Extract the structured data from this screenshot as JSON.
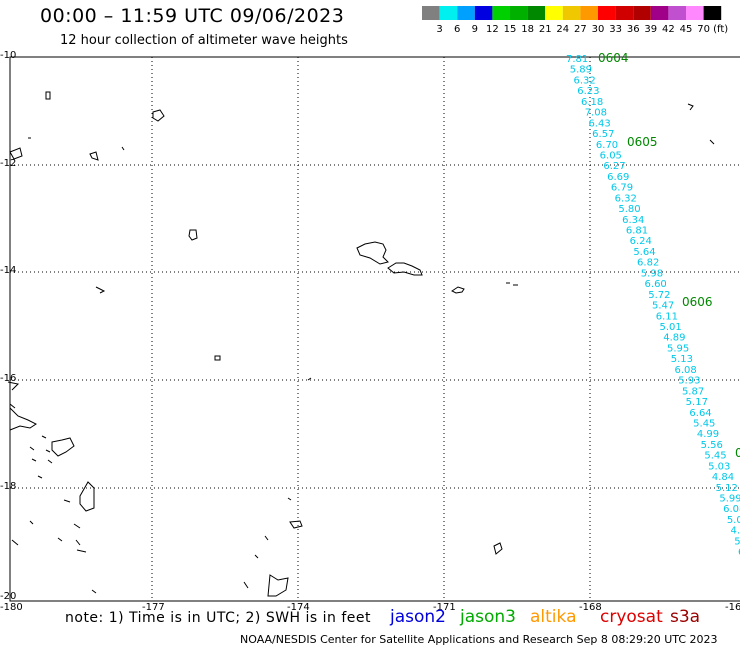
{
  "header": {
    "title": "00:00 – 11:59 UTC 09/06/2023",
    "subtitle": "12 hour collection of altimeter wave heights"
  },
  "colorbar": {
    "labels": [
      "3",
      "6",
      "9",
      "12",
      "15",
      "18",
      "21",
      "24",
      "27",
      "30",
      "33",
      "36",
      "39",
      "42",
      "45",
      "70"
    ],
    "unit": "(ft)",
    "colors": [
      "#808080",
      "#00f0f0",
      "#00a0ff",
      "#0000e0",
      "#00d000",
      "#00b000",
      "#008800",
      "#ffff00",
      "#f0c800",
      "#ff9900",
      "#ff0000",
      "#d00000",
      "#b00000",
      "#a00088",
      "#c050d0",
      "#ff88ff",
      "#000000"
    ]
  },
  "axes": {
    "lat_labels": [
      "-10",
      "-12",
      "-14",
      "-16",
      "-18",
      "-20"
    ],
    "lon_labels": [
      "-180",
      "-177",
      "-174",
      "-171",
      "-168",
      "-16"
    ]
  },
  "track": {
    "color": "#00c8e8",
    "label_color": "#008800",
    "time_labels": [
      "0604",
      "0605",
      "0606",
      "0"
    ],
    "values": [
      "7.81",
      "5.89",
      "6.32",
      "6.23",
      "6.18",
      "7.08",
      "6.43",
      "6.57",
      "6.70",
      "6.05",
      "6.27",
      "6.69",
      "6.79",
      "6.32",
      "5.80",
      "6.34",
      "6.81",
      "6.24",
      "5.64",
      "6.82",
      "5.98",
      "6.60",
      "5.72",
      "5.47",
      "6.11",
      "5.01",
      "4.89",
      "5.95",
      "5.13",
      "6.08",
      "5.93",
      "5.87",
      "5.17",
      "6.64",
      "5.45",
      "4.99",
      "5.56",
      "5.45",
      "5.03",
      "4.84",
      "5.12",
      "5.99",
      "6.08",
      "5.0",
      "4.",
      "5.",
      "6"
    ]
  },
  "footer": {
    "note": "note: 1) Time is in UTC; 2) SWH is in feet",
    "satellites": [
      {
        "name": "jason2",
        "color": "#0000dd"
      },
      {
        "name": "jason3",
        "color": "#00aa00"
      },
      {
        "name": "altika",
        "color": "#ff9900"
      },
      {
        "name": "cryosat",
        "color": "#dd0000"
      },
      {
        "name": "s3a",
        "color": "#990000"
      }
    ],
    "credit": "NOAA/NESDIS Center for Satellite Applications and Research   Sep  8 08:29:20 UTC 2023"
  }
}
